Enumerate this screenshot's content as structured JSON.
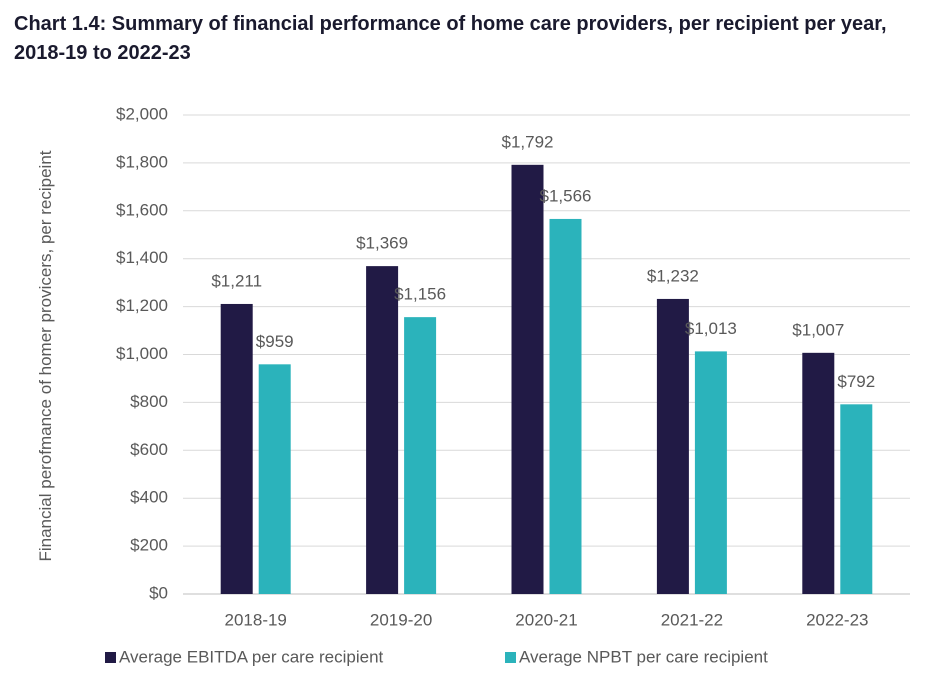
{
  "chart_data": {
    "type": "bar",
    "title": "Chart 1.4: Summary of financial performance of home care providers, per recipient per year, 2018-19 to 2022-23",
    "y_label": "Financial perofmance of homer provicers, per recipeint",
    "categories": [
      "2018-19",
      "2019-20",
      "2020-21",
      "2021-22",
      "2022-23"
    ],
    "series": [
      {
        "name": "Average EBITDA per care recipient",
        "color": "#211a45",
        "values": [
          1211,
          1369,
          1792,
          1232,
          1007
        ],
        "value_labels": [
          "$1,211",
          "$1,369",
          "$1,792",
          "$1,232",
          "$1,007"
        ]
      },
      {
        "name": "Average NPBT per care recipient",
        "color": "#2bb3bb",
        "values": [
          959,
          1156,
          1566,
          1013,
          792
        ],
        "value_labels": [
          "$959",
          "$1,156",
          "$1,566",
          "$1,013",
          "$792"
        ]
      }
    ],
    "ylim": [
      0,
      2000
    ],
    "yticks": [
      {
        "value": 0,
        "label": "$0"
      },
      {
        "value": 200,
        "label": "$200"
      },
      {
        "value": 400,
        "label": "$400"
      },
      {
        "value": 600,
        "label": "$600"
      },
      {
        "value": 800,
        "label": "$800"
      },
      {
        "value": 1000,
        "label": "$1,000"
      },
      {
        "value": 1200,
        "label": "$1,200"
      },
      {
        "value": 1400,
        "label": "$1,400"
      },
      {
        "value": 1600,
        "label": "$1,600"
      },
      {
        "value": 1800,
        "label": "$1,800"
      },
      {
        "value": 2000,
        "label": "$2,000"
      }
    ],
    "grid": true,
    "legend": "bottom"
  }
}
